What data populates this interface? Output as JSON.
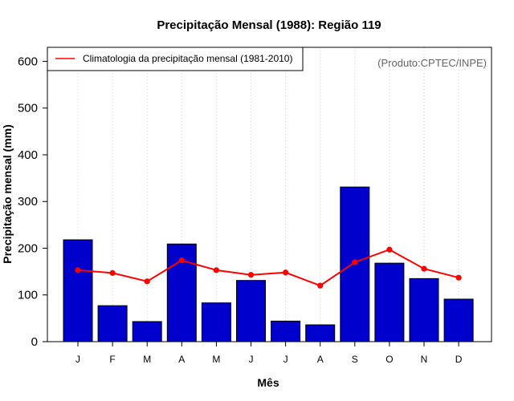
{
  "chart_data": {
    "type": "bar",
    "title": "Precipitação Mensal (1988): Região 119",
    "xlabel": "Mês",
    "ylabel": "Precipitação mensal (mm)",
    "credit": "(Produto:CPTEC/INPE)",
    "categories": [
      "J",
      "F",
      "M",
      "A",
      "M",
      "J",
      "J",
      "A",
      "S",
      "O",
      "N",
      "D"
    ],
    "ylim": [
      0,
      630
    ],
    "yticks": [
      0,
      100,
      200,
      300,
      400,
      500,
      600
    ],
    "grid": "vertical-dotted",
    "legend_position": "top-left",
    "series": [
      {
        "name": "Precipitação mensal (1988)",
        "kind": "bar",
        "color": "#0000CD",
        "values": [
          218,
          77,
          43,
          209,
          83,
          131,
          44,
          36,
          331,
          168,
          135,
          91
        ]
      },
      {
        "name": "Climatologia da precipitação mensal (1981-2010)",
        "kind": "line",
        "color": "#FF0000",
        "values": [
          153,
          147,
          129,
          174,
          153,
          143,
          148,
          120,
          170,
          197,
          156,
          137
        ]
      }
    ]
  }
}
